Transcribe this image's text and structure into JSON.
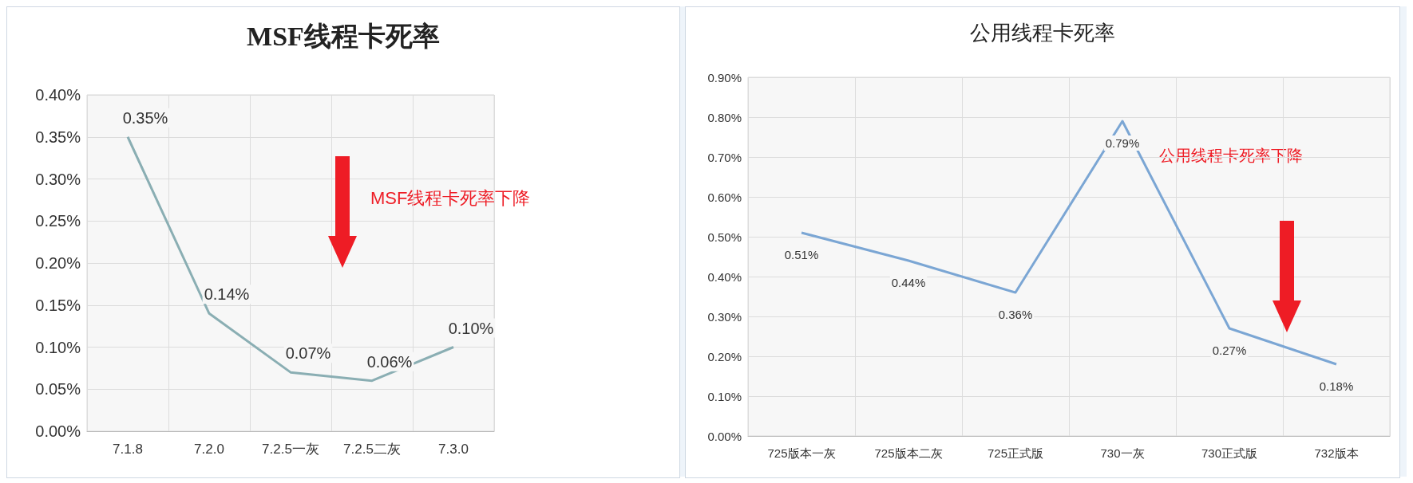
{
  "chart_data": [
    {
      "type": "line",
      "title": "MSF线程卡死率",
      "categories": [
        "7.1.8",
        "7.2.0",
        "7.2.5一灰",
        "7.2.5二灰",
        "7.3.0"
      ],
      "series": [
        {
          "color": "#8aaeb3",
          "values": [
            0.35,
            0.14,
            0.07,
            0.06,
            0.1
          ],
          "value_labels": [
            "0.35%",
            "0.14%",
            "0.07%",
            "0.06%",
            "0.10%"
          ]
        }
      ],
      "ylim": [
        0,
        0.4
      ],
      "yticks": [
        {
          "value": 0,
          "label": "0.00%"
        },
        {
          "value": 0.05,
          "label": "0.05%"
        },
        {
          "value": 0.1,
          "label": "0.10%"
        },
        {
          "value": 0.15,
          "label": "0.15%"
        },
        {
          "value": 0.2,
          "label": "0.20%"
        },
        {
          "value": 0.25,
          "label": "0.25%"
        },
        {
          "value": 0.3,
          "label": "0.30%"
        },
        {
          "value": 0.35,
          "label": "0.35%"
        },
        {
          "value": 0.4,
          "label": "0.40%"
        }
      ],
      "grid": true,
      "marker": "none",
      "annotations": [
        "MSF线程卡死率下降"
      ]
    },
    {
      "type": "line",
      "title": "公用线程卡死率",
      "categories": [
        "725版本一灰",
        "725版本二灰",
        "725正式版",
        "730一灰",
        "730正式版",
        "732版本"
      ],
      "series": [
        {
          "color": "#7ba6d4",
          "values": [
            0.51,
            0.44,
            0.36,
            0.79,
            0.27,
            0.18
          ],
          "value_labels": [
            "0.51%",
            "0.44%",
            "0.36%",
            "0.79%",
            "0.27%",
            "0.18%"
          ]
        }
      ],
      "ylim": [
        0,
        0.9
      ],
      "yticks": [
        {
          "value": 0,
          "label": "0.00%"
        },
        {
          "value": 0.1,
          "label": "0.10%"
        },
        {
          "value": 0.2,
          "label": "0.20%"
        },
        {
          "value": 0.3,
          "label": "0.30%"
        },
        {
          "value": 0.4,
          "label": "0.40%"
        },
        {
          "value": 0.5,
          "label": "0.50%"
        },
        {
          "value": 0.6,
          "label": "0.60%"
        },
        {
          "value": 0.7,
          "label": "0.70%"
        },
        {
          "value": 0.8,
          "label": "0.80%"
        },
        {
          "value": 0.9,
          "label": "0.90%"
        }
      ],
      "grid": true,
      "marker": "none",
      "annotations": [
        "公用线程卡死率下降"
      ]
    }
  ]
}
